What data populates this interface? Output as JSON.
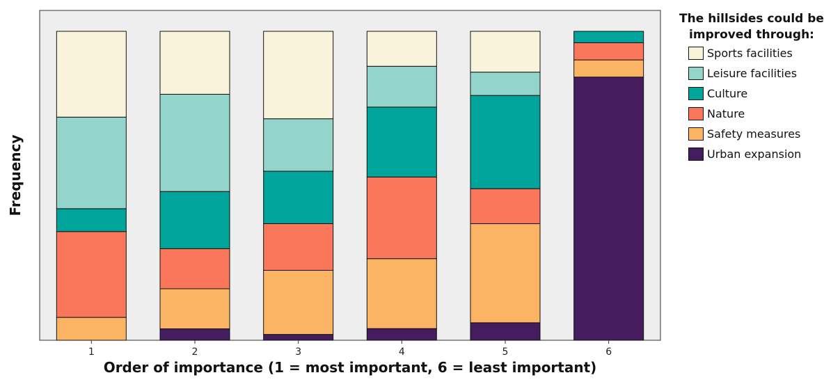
{
  "chart_data": {
    "type": "bar",
    "stacked": true,
    "xlabel": "Order of importance (1 = most important, 6 = least important)",
    "ylabel": "Frequency",
    "categories": [
      "1",
      "2",
      "3",
      "4",
      "5",
      "6"
    ],
    "legend": {
      "title": "The hillsides could be improved through:",
      "placement": "right"
    },
    "grid": false,
    "series": [
      {
        "name": "Urban expansion",
        "color": "#451C5E",
        "values": [
          0,
          2,
          1,
          2,
          3,
          46
        ]
      },
      {
        "name": "Safety measures",
        "color": "#FBB463",
        "values": [
          4,
          7,
          11,
          12,
          17,
          3
        ]
      },
      {
        "name": "Nature",
        "color": "#FA775C",
        "values": [
          15,
          7,
          8,
          14,
          6,
          3
        ]
      },
      {
        "name": "Culture",
        "color": "#00A49A",
        "values": [
          4,
          10,
          9,
          12,
          16,
          2
        ]
      },
      {
        "name": "Leisure facilities",
        "color": "#93D5CA",
        "values": [
          16,
          17,
          9,
          7,
          4,
          0
        ]
      },
      {
        "name": "Sports facilities",
        "color": "#FAF3DB",
        "values": [
          15,
          11,
          15,
          6,
          7,
          0
        ]
      }
    ]
  }
}
